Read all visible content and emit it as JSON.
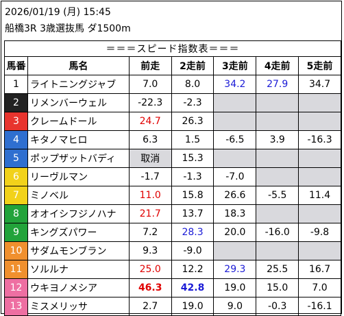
{
  "header": {
    "datetime": "2026/01/19 (月) 15:45",
    "race": "船橋3R 3歳選抜馬 ダ1500m"
  },
  "table": {
    "title": "＝＝＝スピード指数表＝＝＝",
    "columns": [
      "馬番",
      "馬名",
      "前走",
      "2走前",
      "3走前",
      "4走前",
      "5走前"
    ],
    "frame_colors": {
      "1": {
        "bg": "#ffffff",
        "fg": "#000000"
      },
      "2": {
        "bg": "#222222",
        "fg": "#ffffff"
      },
      "3": {
        "bg": "#e8342e",
        "fg": "#ffffff"
      },
      "4": {
        "bg": "#2f6fd0",
        "fg": "#ffffff"
      },
      "5": {
        "bg": "#2f6fd0",
        "fg": "#ffffff"
      },
      "6": {
        "bg": "#f2d21a",
        "fg": "#ffffff"
      },
      "7": {
        "bg": "#f2d21a",
        "fg": "#ffffff"
      },
      "8": {
        "bg": "#22a33a",
        "fg": "#ffffff"
      },
      "9": {
        "bg": "#22a33a",
        "fg": "#ffffff"
      },
      "10": {
        "bg": "#f0902e",
        "fg": "#ffffff"
      },
      "11": {
        "bg": "#f0902e",
        "fg": "#ffffff"
      },
      "12": {
        "bg": "#ee6fa2",
        "fg": "#ffffff"
      },
      "13": {
        "bg": "#ee6fa2",
        "fg": "#ffffff"
      }
    },
    "rows": [
      {
        "no": "1",
        "name": "ライトニングジャブ",
        "vals": [
          {
            "v": "7.0"
          },
          {
            "v": "8.0"
          },
          {
            "v": "34.2",
            "c": "blue"
          },
          {
            "v": "27.9",
            "c": "blue"
          },
          {
            "v": "34.7"
          }
        ]
      },
      {
        "no": "2",
        "name": "リメンバーウェル",
        "vals": [
          {
            "v": "-22.3"
          },
          {
            "v": "-2.3"
          },
          {
            "v": "",
            "blank": true
          },
          {
            "v": "",
            "blank": true
          },
          {
            "v": "",
            "blank": true
          }
        ]
      },
      {
        "no": "3",
        "name": "クレームドール",
        "vals": [
          {
            "v": "24.7",
            "c": "red"
          },
          {
            "v": "26.3"
          },
          {
            "v": "",
            "blank": true
          },
          {
            "v": "",
            "blank": true
          },
          {
            "v": "",
            "blank": true
          }
        ]
      },
      {
        "no": "4",
        "name": "キタノマヒロ",
        "vals": [
          {
            "v": "6.3"
          },
          {
            "v": "1.5"
          },
          {
            "v": "-6.5"
          },
          {
            "v": "3.9"
          },
          {
            "v": "-16.3"
          }
        ]
      },
      {
        "no": "5",
        "name": "ポップザットバディ",
        "vals": [
          {
            "v": "取消",
            "gray": true
          },
          {
            "v": "15.3"
          },
          {
            "v": "",
            "blank": true
          },
          {
            "v": "",
            "blank": true
          },
          {
            "v": "",
            "blank": true
          }
        ]
      },
      {
        "no": "6",
        "name": "リーヴルマン",
        "vals": [
          {
            "v": "-1.7"
          },
          {
            "v": "-1.3"
          },
          {
            "v": "-7.0"
          },
          {
            "v": "",
            "blank": true
          },
          {
            "v": "",
            "blank": true
          }
        ]
      },
      {
        "no": "7",
        "name": "ミノベル",
        "vals": [
          {
            "v": "11.0",
            "c": "red"
          },
          {
            "v": "15.8"
          },
          {
            "v": "26.6"
          },
          {
            "v": "-5.5"
          },
          {
            "v": "11.4"
          }
        ]
      },
      {
        "no": "8",
        "name": "オオイシフジノハナ",
        "vals": [
          {
            "v": "21.7",
            "c": "red"
          },
          {
            "v": "13.7"
          },
          {
            "v": "18.3"
          },
          {
            "v": "",
            "blank": true
          },
          {
            "v": "",
            "blank": true
          }
        ]
      },
      {
        "no": "9",
        "name": "キングズパワー",
        "vals": [
          {
            "v": "7.2"
          },
          {
            "v": "28.3",
            "c": "blue"
          },
          {
            "v": "20.0"
          },
          {
            "v": "-16.0"
          },
          {
            "v": "-9.8"
          }
        ]
      },
      {
        "no": "10",
        "name": "サダムモンブラン",
        "vals": [
          {
            "v": "9.3"
          },
          {
            "v": "-9.0"
          },
          {
            "v": "",
            "blank": true
          },
          {
            "v": "",
            "blank": true
          },
          {
            "v": "",
            "blank": true
          }
        ]
      },
      {
        "no": "11",
        "name": "ソルルナ",
        "vals": [
          {
            "v": "25.0",
            "c": "red"
          },
          {
            "v": "12.2"
          },
          {
            "v": "29.3",
            "c": "blue"
          },
          {
            "v": "25.5"
          },
          {
            "v": "16.7"
          }
        ]
      },
      {
        "no": "12",
        "name": "ウキヨノメシア",
        "vals": [
          {
            "v": "46.3",
            "c": "red",
            "b": true
          },
          {
            "v": "42.8",
            "c": "blue",
            "b": true
          },
          {
            "v": "19.0"
          },
          {
            "v": "15.0"
          },
          {
            "v": "7.0"
          }
        ]
      },
      {
        "no": "13",
        "name": "ミスメリッサ",
        "vals": [
          {
            "v": "2.7"
          },
          {
            "v": "19.0"
          },
          {
            "v": "9.0"
          },
          {
            "v": "-0.3"
          },
          {
            "v": "-16.1"
          }
        ]
      }
    ]
  }
}
